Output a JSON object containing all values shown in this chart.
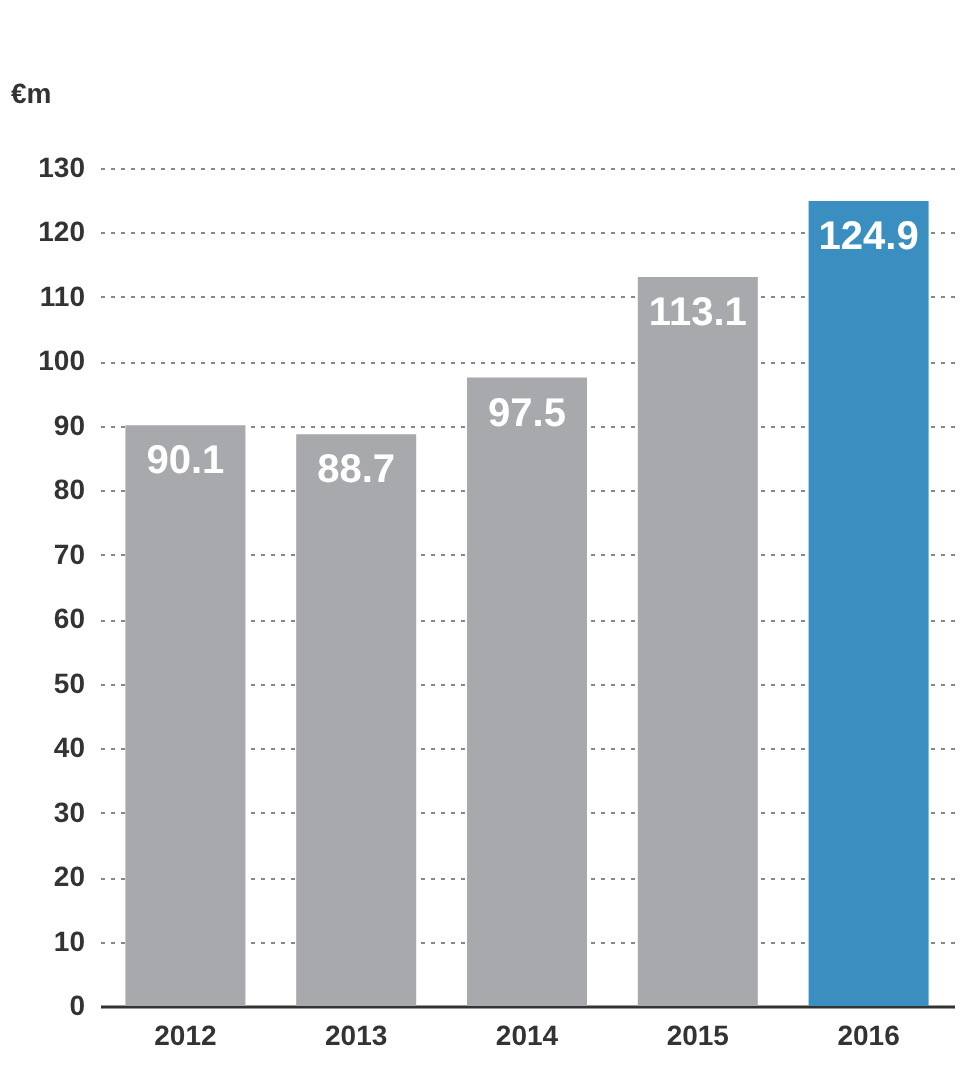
{
  "chart_data": {
    "type": "bar",
    "ylabel": "€m",
    "categories": [
      "2012",
      "2013",
      "2014",
      "2015",
      "2016"
    ],
    "values": [
      90.1,
      88.7,
      97.5,
      113.1,
      124.9
    ],
    "colors": [
      "#a7a9ac",
      "#a7a9ac",
      "#a7a9ac",
      "#a7a9ac",
      "#3a8fc0"
    ],
    "ylim": [
      0,
      130
    ],
    "yticks": [
      0,
      10,
      20,
      30,
      40,
      50,
      60,
      70,
      80,
      90,
      100,
      110,
      120,
      130
    ],
    "grid": "y",
    "data_labels": true
  }
}
